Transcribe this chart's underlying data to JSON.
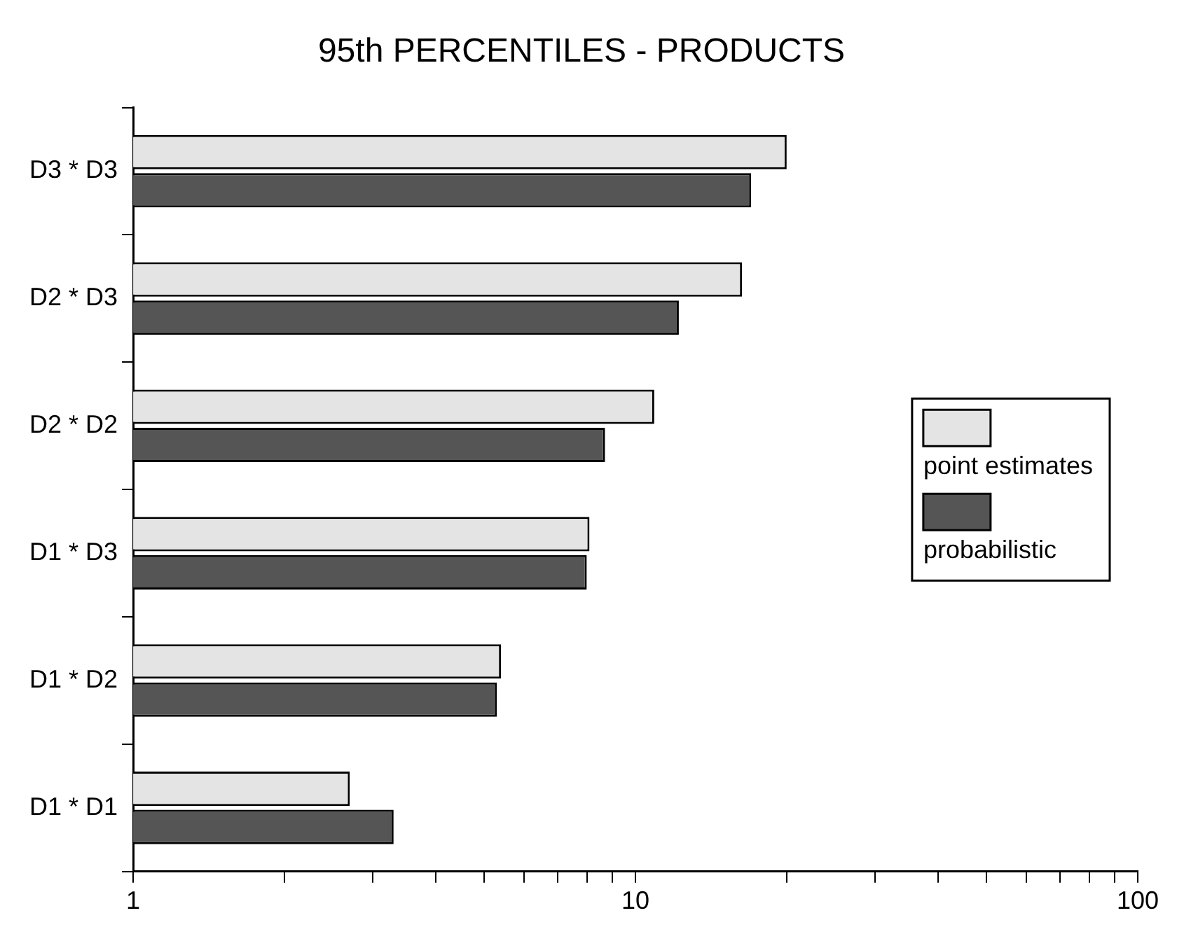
{
  "chart_data": {
    "type": "bar",
    "orientation": "horizontal",
    "title": "95th PERCENTILES - PRODUCTS",
    "categories": [
      "D3 * D3",
      "D2 * D3",
      "D2 * D2",
      "D1 * D3",
      "D1 * D2",
      "D1 * D1"
    ],
    "series": [
      {
        "name": "point estimates",
        "color": "#e4e4e4",
        "values": [
          20,
          16.3,
          10.9,
          8.1,
          5.4,
          2.7
        ]
      },
      {
        "name": "probabilistic",
        "color": "#555555",
        "values": [
          17,
          12.2,
          8.7,
          8,
          5.3,
          3.3
        ]
      }
    ],
    "log": "x",
    "xlim": [
      1,
      100
    ],
    "xticks": [
      1,
      {
        "value": 2,
        "label": null
      },
      {
        "value": 3,
        "label": null
      },
      {
        "value": 4,
        "label": null
      },
      {
        "value": 5,
        "label": null
      },
      {
        "value": 6,
        "label": null
      },
      {
        "value": 7,
        "label": null
      },
      {
        "value": 8,
        "label": null
      },
      {
        "value": 9,
        "label": null
      },
      10,
      {
        "value": 20,
        "label": null
      },
      {
        "value": 30,
        "label": null
      },
      {
        "value": 40,
        "label": null
      },
      {
        "value": 50,
        "label": null
      },
      {
        "value": 60,
        "label": null
      },
      {
        "value": 70,
        "label": null
      },
      {
        "value": 80,
        "label": null
      },
      {
        "value": 90,
        "label": null
      },
      100
    ],
    "grid": false,
    "legend": "right"
  }
}
